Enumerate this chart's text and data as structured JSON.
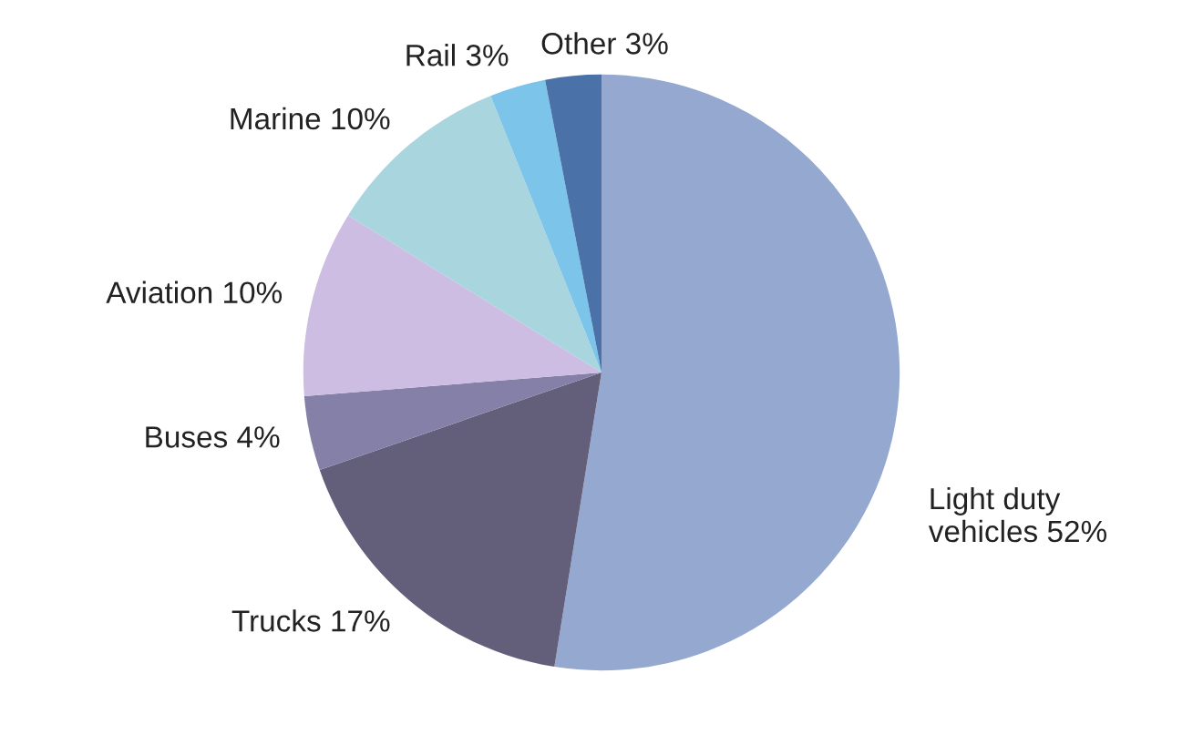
{
  "chart_data": {
    "type": "pie",
    "categories": [
      "Light duty vehicles",
      "Trucks",
      "Buses",
      "Aviation",
      "Marine",
      "Rail",
      "Other"
    ],
    "values": [
      52,
      17,
      4,
      10,
      10,
      3,
      3
    ],
    "value_labels": [
      "52%",
      "17%",
      "4%",
      "10%",
      "10%",
      "3%",
      "3%"
    ],
    "colors": [
      "#95a8d0",
      "#635f7a",
      "#8580a8",
      "#cdbde3",
      "#a8d5de",
      "#7cc4ea",
      "#4a72a8"
    ],
    "legend": false
  }
}
